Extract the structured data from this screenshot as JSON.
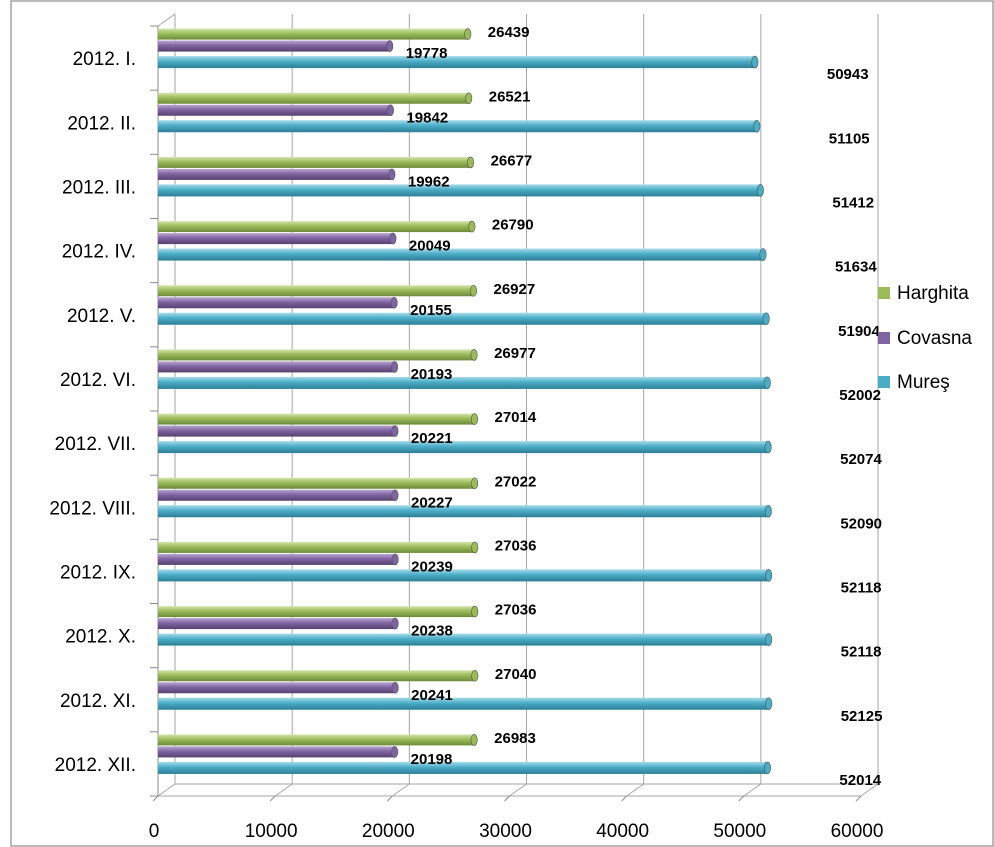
{
  "chart_data": {
    "type": "bar",
    "orientation": "horizontal",
    "style": "3d-cylinder",
    "categories": [
      "2012. I.",
      "2012. II.",
      "2012. III.",
      "2012. IV.",
      "2012. V.",
      "2012. VI.",
      "2012. VII.",
      "2012. VIII.",
      "2012. IX.",
      "2012. X.",
      "2012. XI.",
      "2012. XII."
    ],
    "series": [
      {
        "name": "Harghita",
        "color": "#9BBB59",
        "values": [
          26439,
          26521,
          26677,
          26790,
          26927,
          26977,
          27014,
          27022,
          27036,
          27036,
          27040,
          26983
        ]
      },
      {
        "name": "Covasna",
        "color": "#8064A2",
        "values": [
          19778,
          19842,
          19962,
          20049,
          20155,
          20193,
          20221,
          20227,
          20239,
          20238,
          20241,
          20198
        ]
      },
      {
        "name": "Mureş",
        "color": "#4BACC6",
        "values": [
          50943,
          51105,
          51412,
          51634,
          51904,
          52002,
          52074,
          52090,
          52118,
          52118,
          52125,
          52014
        ]
      }
    ],
    "xlim": [
      0,
      60000
    ],
    "xticks": [
      0,
      10000,
      20000,
      30000,
      40000,
      50000,
      60000
    ],
    "xtick_labels": [
      "0",
      "10000",
      "20000",
      "30000",
      "40000",
      "50000",
      "60000"
    ],
    "grid": "vertical",
    "legend": {
      "placement": "right",
      "order": [
        "Harghita",
        "Covasna",
        "Mureş"
      ]
    },
    "data_labels": true,
    "title": "",
    "xlabel": "",
    "ylabel": ""
  }
}
